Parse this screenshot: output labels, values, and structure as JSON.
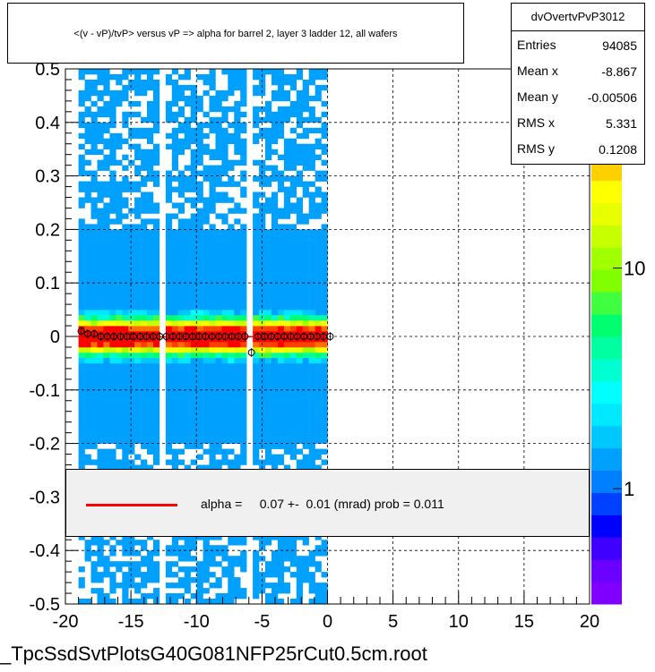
{
  "title": "<(v - vP)/tvP> versus   vP => alpha for barrel 2, layer 3 ladder 12, all wafers",
  "stats": {
    "name": "dvOvertvPvP3012",
    "rows": [
      {
        "label": "Entries",
        "value": "94085"
      },
      {
        "label": "Mean x",
        "value": "-8.867"
      },
      {
        "label": "Mean y",
        "value": "-0.00506"
      },
      {
        "label": "RMS x",
        "value": "5.331"
      },
      {
        "label": "RMS y",
        "value": "0.1208"
      }
    ]
  },
  "fit": {
    "text": "alpha =     0.07 +-  0.01 (mrad) prob = 0.011",
    "line_color": "#ff0000"
  },
  "footer": "_TpcSsdSvtPlotsG40G081NFP25rCut0.5cm.root",
  "chart_data": {
    "type": "heatmap",
    "title": "<(v - vP)/tvP> versus   vP => alpha for barrel 2, layer 3 ladder 12, all wafers",
    "xlim": [
      -20,
      20
    ],
    "ylim": [
      -0.5,
      0.5
    ],
    "x_ticks": [
      "-20",
      "-15",
      "-10",
      "-5",
      "0",
      "5",
      "10",
      "15",
      "20"
    ],
    "y_ticks": [
      "-0.5",
      "-0.4",
      "-0.3",
      "-0.2",
      "-0.1",
      "0",
      "0.1",
      "0.2",
      "0.3",
      "0.4",
      "0.5"
    ],
    "grid": true,
    "z_scale": "log",
    "z_ticks": [
      "1",
      "10"
    ],
    "z_tick_values": [
      1,
      10
    ],
    "zlim": [
      0.3,
      80
    ],
    "palette": [
      "#8000ff",
      "#6a00ff",
      "#4000ff",
      "#0000ff",
      "#0040ff",
      "#0080ff",
      "#00a0ff",
      "#00c8ff",
      "#00e8ff",
      "#00ffff",
      "#00ffd0",
      "#00ffa0",
      "#00ff70",
      "#40ff40",
      "#80ff00",
      "#a0ff00",
      "#c8ff00",
      "#e8ff00",
      "#ffff00",
      "#ffd000",
      "#ffa000",
      "#ff7000",
      "#ff4000",
      "#ff0000"
    ],
    "data_x_range": [
      -19.0,
      0.0
    ],
    "gap_x": [
      -13.0,
      -6.0
    ],
    "profile_points": [
      {
        "x": -18.8,
        "y": 0.01
      },
      {
        "x": -18.3,
        "y": 0.005
      },
      {
        "x": -17.8,
        "y": 0.005
      },
      {
        "x": -17.3,
        "y": 0.0
      },
      {
        "x": -16.8,
        "y": 0.0
      },
      {
        "x": -16.3,
        "y": 0.0
      },
      {
        "x": -15.8,
        "y": 0.0
      },
      {
        "x": -15.3,
        "y": 0.0
      },
      {
        "x": -14.8,
        "y": 0.0
      },
      {
        "x": -14.3,
        "y": 0.0
      },
      {
        "x": -13.8,
        "y": 0.0
      },
      {
        "x": -13.3,
        "y": 0.0
      },
      {
        "x": -12.8,
        "y": 0.0
      },
      {
        "x": -12.3,
        "y": 0.0
      },
      {
        "x": -11.8,
        "y": 0.0
      },
      {
        "x": -11.3,
        "y": 0.0
      },
      {
        "x": -10.8,
        "y": 0.0
      },
      {
        "x": -10.3,
        "y": 0.0
      },
      {
        "x": -9.8,
        "y": 0.0
      },
      {
        "x": -9.3,
        "y": 0.0
      },
      {
        "x": -8.8,
        "y": 0.0
      },
      {
        "x": -8.3,
        "y": 0.0
      },
      {
        "x": -7.8,
        "y": 0.0
      },
      {
        "x": -7.3,
        "y": 0.0
      },
      {
        "x": -6.8,
        "y": 0.0
      },
      {
        "x": -6.3,
        "y": 0.0
      },
      {
        "x": -5.8,
        "y": -0.03
      },
      {
        "x": -5.3,
        "y": 0.0
      },
      {
        "x": -4.8,
        "y": 0.0
      },
      {
        "x": -4.3,
        "y": 0.0
      },
      {
        "x": -3.8,
        "y": 0.0
      },
      {
        "x": -3.3,
        "y": 0.0
      },
      {
        "x": -2.8,
        "y": 0.0
      },
      {
        "x": -2.3,
        "y": 0.0
      },
      {
        "x": -1.8,
        "y": 0.0
      },
      {
        "x": -1.3,
        "y": 0.0
      },
      {
        "x": -0.8,
        "y": 0.0
      },
      {
        "x": -0.3,
        "y": 0.0
      },
      {
        "x": 0.2,
        "y": 0.0
      }
    ],
    "fit_line": {
      "intercept": 0.0,
      "slope": 7e-05
    }
  }
}
